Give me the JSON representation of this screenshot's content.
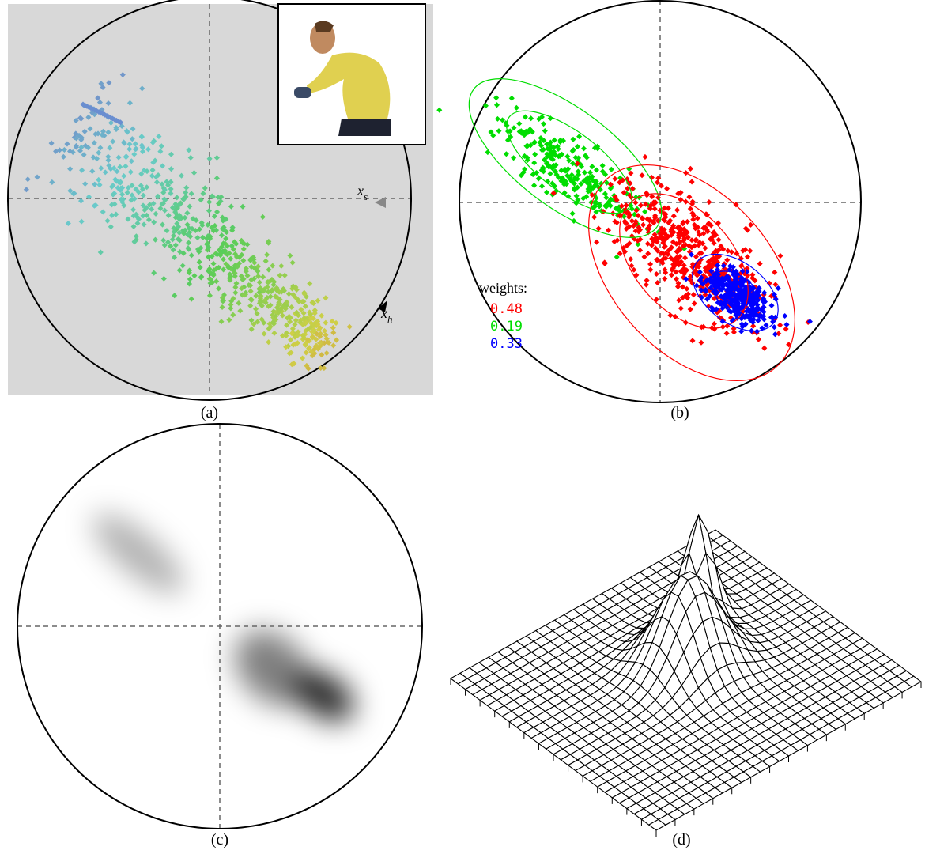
{
  "panel_a": {
    "caption": "(a)",
    "saturation_axis": {
      "symbol": "x",
      "subscript": "s"
    },
    "hue_axis": {
      "symbol": "x",
      "subscript": "h"
    }
  },
  "panel_b": {
    "caption": "(b)",
    "weights_title": "weights:",
    "weights": [
      {
        "value": "0.48",
        "color": "#ff0000"
      },
      {
        "value": "0.19",
        "color": "#00dd00"
      },
      {
        "value": "0.33",
        "color": "#0000ff"
      }
    ]
  },
  "panel_c": {
    "caption": "(c)"
  },
  "panel_d": {
    "caption": "(d)"
  }
}
